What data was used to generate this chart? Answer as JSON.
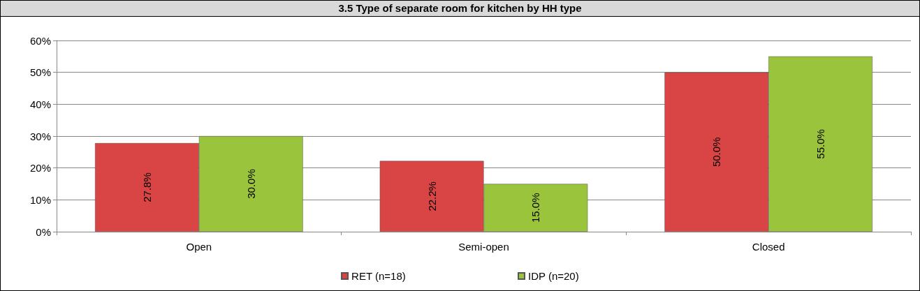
{
  "chart_data": {
    "type": "bar",
    "title": "3.5 Type of separate room for kitchen by HH type",
    "categories": [
      "Open",
      "Semi-open",
      "Closed"
    ],
    "series": [
      {
        "name": "RET (n=18)",
        "color": "#d94545",
        "values": [
          27.8,
          22.2,
          50.0
        ],
        "value_labels": [
          "27.8%",
          "22.2%",
          "50.0%"
        ]
      },
      {
        "name": "IDP (n=20)",
        "color": "#9ac43c",
        "values": [
          30.0,
          15.0,
          55.0
        ],
        "value_labels": [
          "30.0%",
          "15.0%",
          "55.0%"
        ]
      }
    ],
    "ylim": [
      0,
      60
    ],
    "yticks": [
      {
        "value": 0,
        "label": "0%"
      },
      {
        "value": 10,
        "label": "10%"
      },
      {
        "value": 20,
        "label": "20%"
      },
      {
        "value": 30,
        "label": "30%"
      },
      {
        "value": 40,
        "label": "40%"
      },
      {
        "value": 50,
        "label": "50%"
      },
      {
        "value": 60,
        "label": "60%"
      }
    ],
    "grid": "y",
    "legend": "bottom"
  }
}
